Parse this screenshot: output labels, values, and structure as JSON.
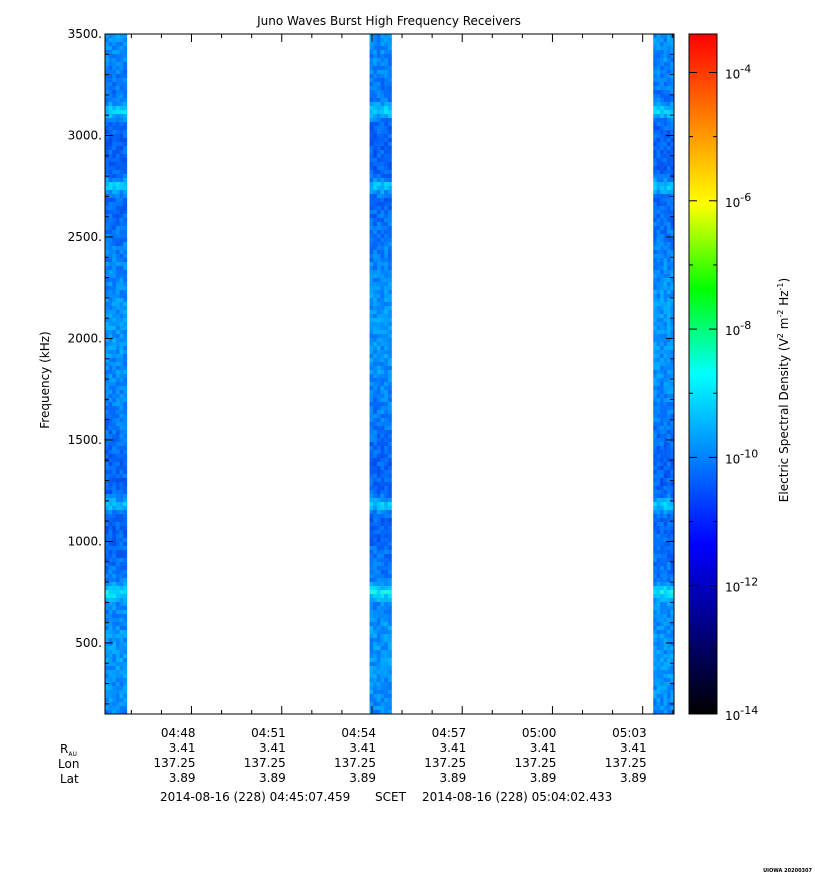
{
  "chart_data": {
    "type": "heatmap",
    "title": "Juno Waves Burst High Frequency Receivers",
    "ylabel": "Frequency (kHz)",
    "ylim": [
      150,
      3500
    ],
    "y_ticks": [
      {
        "value": 500,
        "label": "500."
      },
      {
        "value": 1000,
        "label": "1000."
      },
      {
        "value": 1500,
        "label": "1500."
      },
      {
        "value": 2000,
        "label": "2000."
      },
      {
        "value": 2500,
        "label": "2500."
      },
      {
        "value": 3000,
        "label": "3000."
      },
      {
        "value": 3500,
        "label": "3500."
      }
    ],
    "xlim_minutes": [
      45.124,
      64.041
    ],
    "x_ticks": [
      {
        "minute": 48,
        "label": "04:48",
        "rau": "3.41",
        "lon": "137.25",
        "lat": "3.89"
      },
      {
        "minute": 51,
        "label": "04:51",
        "rau": "3.41",
        "lon": "137.25",
        "lat": "3.89"
      },
      {
        "minute": 54,
        "label": "04:54",
        "rau": "3.41",
        "lon": "137.25",
        "lat": "3.89"
      },
      {
        "minute": 57,
        "label": "04:57",
        "rau": "3.41",
        "lon": "137.25",
        "lat": "3.89"
      },
      {
        "minute": 60,
        "label": "05:00",
        "rau": "3.41",
        "lon": "137.25",
        "lat": "3.89"
      },
      {
        "minute": 63,
        "label": "05:03",
        "rau": "3.41",
        "lon": "137.25",
        "lat": "3.89"
      }
    ],
    "row_labels": {
      "rau_main": "R",
      "rau_sub": "AU",
      "lon": "Lon",
      "lat": "Lat"
    },
    "time_range": {
      "start": "2014-08-16 (228) 04:45:07.459",
      "scet": "SCET",
      "end": "2014-08-16 (228) 05:04:02.433"
    },
    "bursts": [
      {
        "start_minute": 45.124,
        "end_minute": 45.85
      },
      {
        "start_minute": 53.92,
        "end_minute": 54.65
      },
      {
        "start_minute": 63.35,
        "end_minute": 64.041
      }
    ],
    "enhanced_frequencies_khz": [
      750,
      1180,
      2750,
      3120
    ],
    "colorbar": {
      "label_prefix": "Electric Spectral Density (V",
      "label_mid1": " m",
      "label_mid2": " Hz",
      "label_suffix": ")",
      "sup_v": "2",
      "sup_m": "-2",
      "sup_hz": "-1",
      "log_min": -14,
      "log_max": -3.4,
      "ticks": [
        {
          "base": "10",
          "exp": "-14",
          "log": -14
        },
        {
          "base": "10",
          "exp": "-12",
          "log": -12
        },
        {
          "base": "10",
          "exp": "-10",
          "log": -10
        },
        {
          "base": "10",
          "exp": "-8",
          "log": -8
        },
        {
          "base": "10",
          "exp": "-6",
          "log": -6
        },
        {
          "base": "10",
          "exp": "-4",
          "log": -4
        }
      ],
      "colors": [
        "#000000",
        "#000080",
        "#0000ff",
        "#0080ff",
        "#00ffff",
        "#00ff00",
        "#ffff00",
        "#ff8000",
        "#ff0000"
      ]
    },
    "footer": "UIOWA 20200307"
  }
}
